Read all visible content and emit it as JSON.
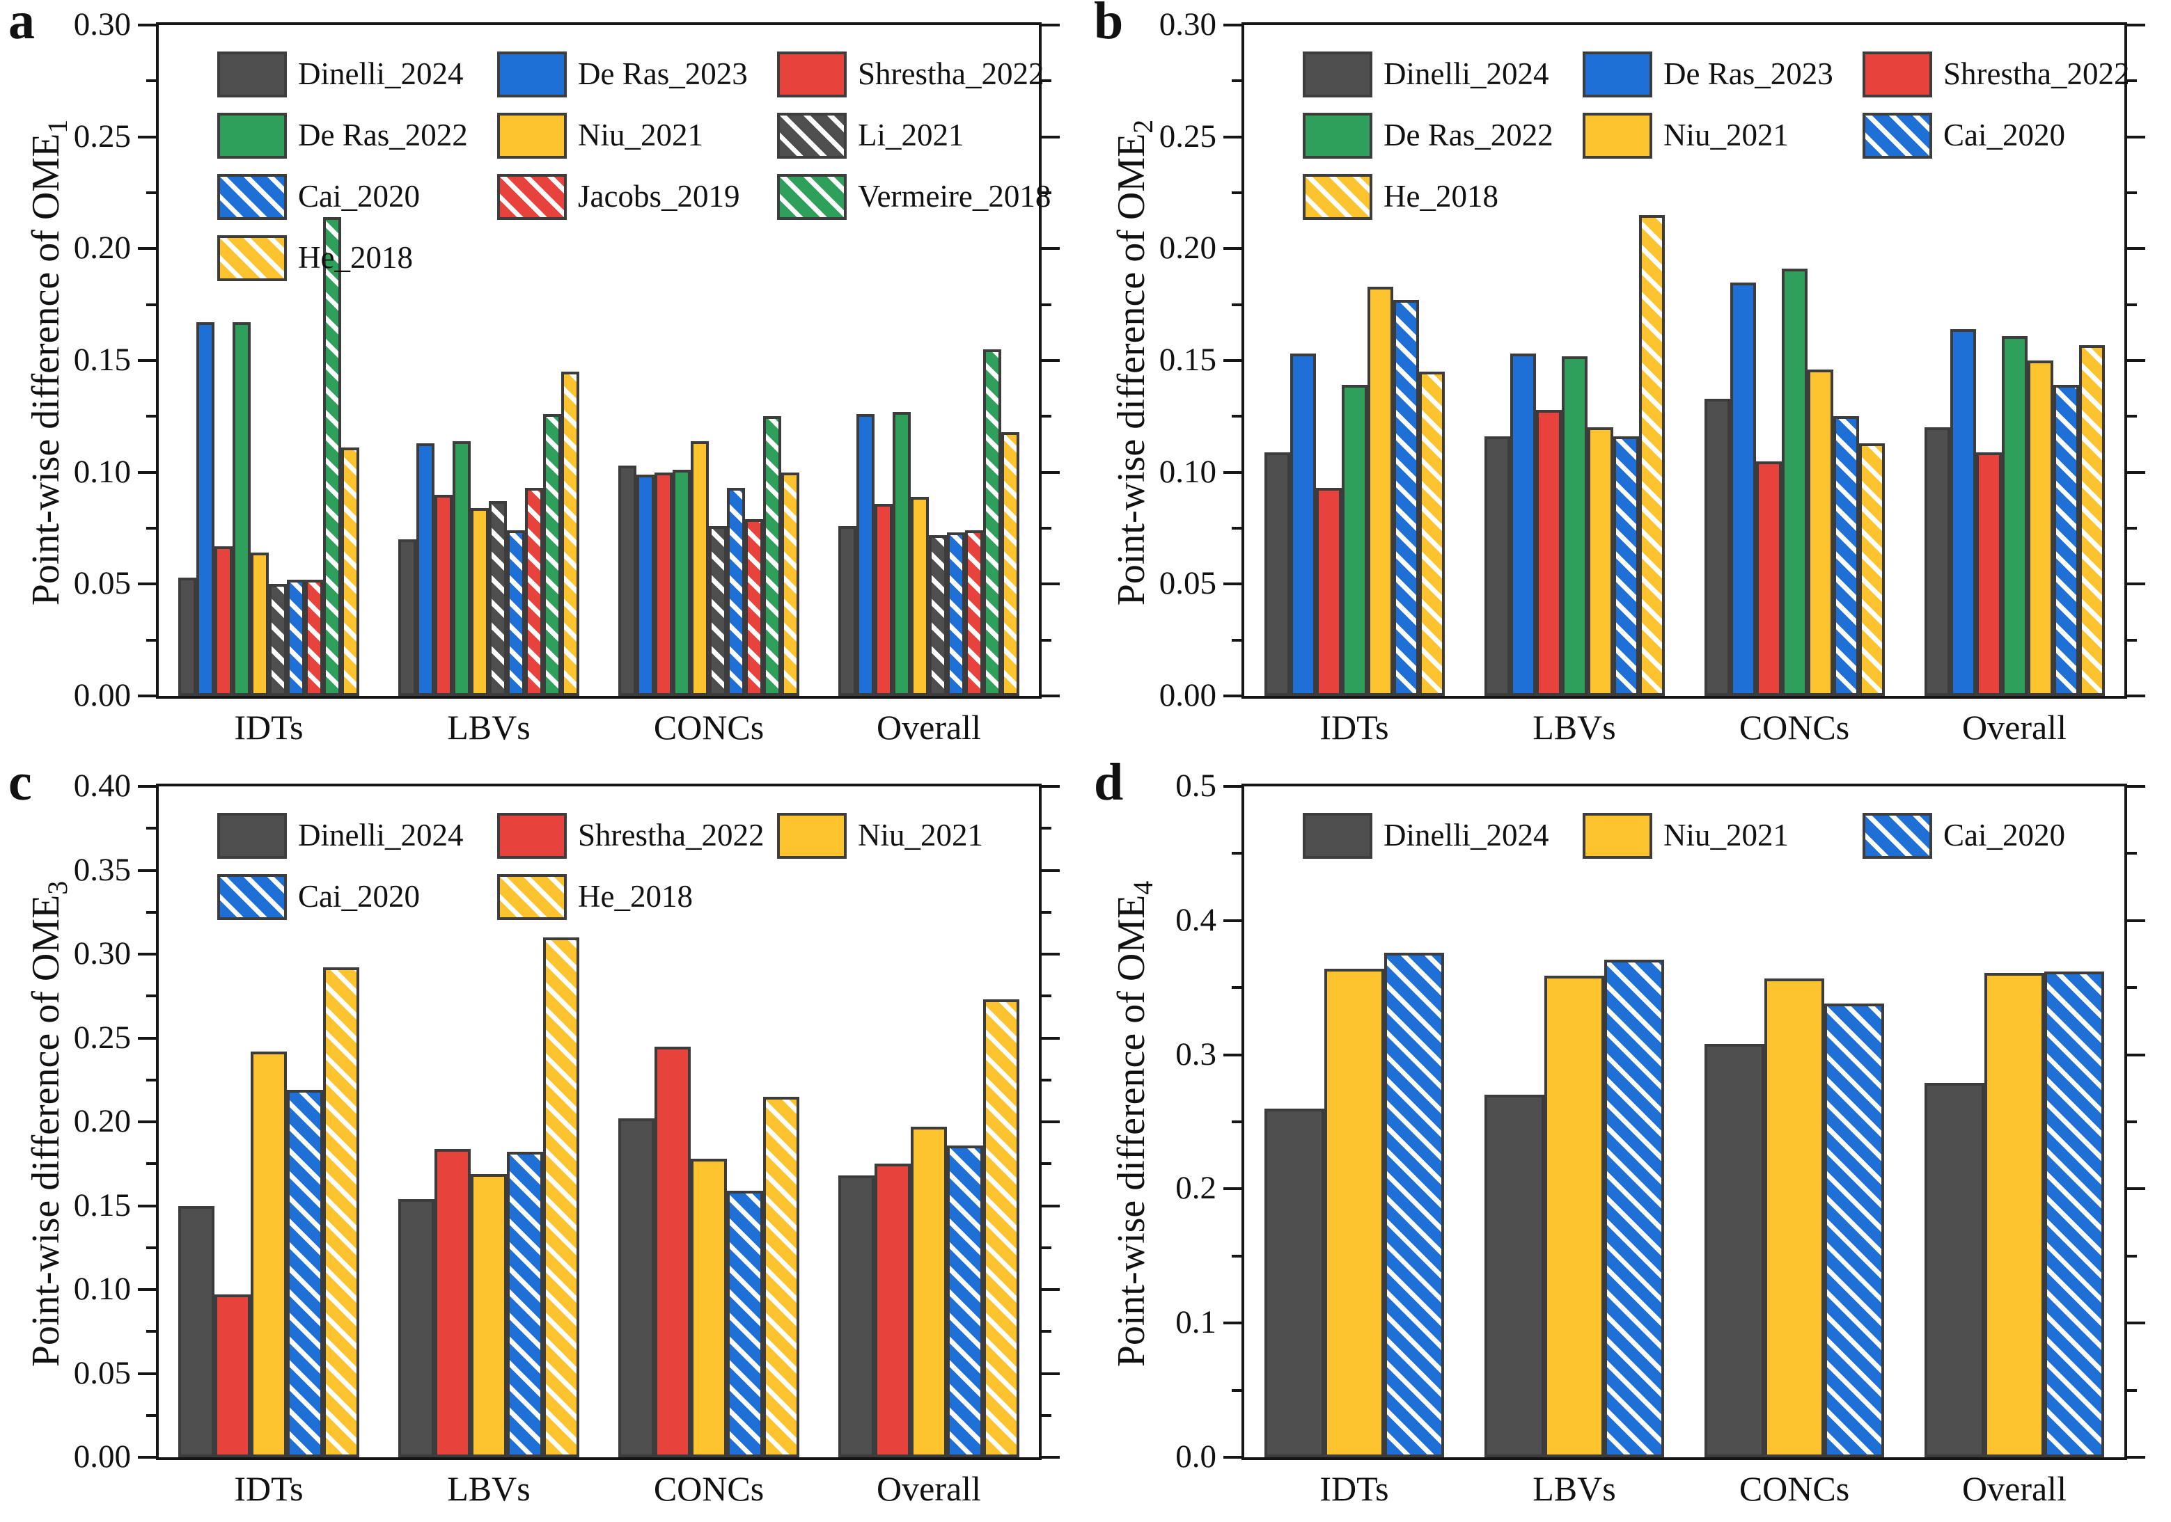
{
  "style": {
    "colors": {
      "gray": "#4e4e4e",
      "blue": "#1e70d6",
      "red": "#e8423c",
      "green": "#2fa05c",
      "yellow": "#fcc32f",
      "bar_edge": "#3c3c3c",
      "axis": "#161616",
      "hatch_stripe": "#ffffff"
    }
  },
  "chart_data": [
    {
      "type": "bar",
      "letter": "a",
      "ylabel": "Point-wise difference of OME",
      "ylabel_sub": "1",
      "ylim": [
        0,
        0.3
      ],
      "ytick_major": 0.05,
      "ytick_minor": 0.025,
      "ytick_decimals": 2,
      "grid": false,
      "legend_position": "upper-left-inside",
      "legend_cols": 3,
      "categories": [
        "IDTs",
        "LBVs",
        "CONCs",
        "Overall"
      ],
      "series": [
        {
          "name": "Dinelli_2024",
          "color": "gray",
          "hatch": false,
          "values": [
            0.053,
            0.07,
            0.103,
            0.076
          ]
        },
        {
          "name": "De Ras_2023",
          "color": "blue",
          "hatch": false,
          "values": [
            0.167,
            0.113,
            0.099,
            0.126
          ]
        },
        {
          "name": "Shrestha_2022",
          "color": "red",
          "hatch": false,
          "values": [
            0.067,
            0.09,
            0.1,
            0.086
          ]
        },
        {
          "name": "De Ras_2022",
          "color": "green",
          "hatch": false,
          "values": [
            0.167,
            0.114,
            0.101,
            0.127
          ]
        },
        {
          "name": "Niu_2021",
          "color": "yellow",
          "hatch": false,
          "values": [
            0.064,
            0.084,
            0.114,
            0.089
          ]
        },
        {
          "name": "Li_2021",
          "color": "gray",
          "hatch": true,
          "values": [
            0.05,
            0.087,
            0.076,
            0.072
          ]
        },
        {
          "name": "Cai_2020",
          "color": "blue",
          "hatch": true,
          "values": [
            0.052,
            0.074,
            0.093,
            0.073
          ]
        },
        {
          "name": "Jacobs_2019",
          "color": "red",
          "hatch": true,
          "values": [
            0.052,
            0.093,
            0.079,
            0.074
          ]
        },
        {
          "name": "Vermeire_2018",
          "color": "green",
          "hatch": true,
          "values": [
            0.214,
            0.126,
            0.125,
            0.155
          ]
        },
        {
          "name": "He_2018",
          "color": "yellow",
          "hatch": true,
          "values": [
            0.111,
            0.145,
            0.1,
            0.118
          ]
        }
      ]
    },
    {
      "type": "bar",
      "letter": "b",
      "ylabel": "Point-wise difference of OME",
      "ylabel_sub": "2",
      "ylim": [
        0,
        0.3
      ],
      "ytick_major": 0.05,
      "ytick_minor": 0.025,
      "ytick_decimals": 2,
      "grid": false,
      "legend_position": "upper-left-inside",
      "legend_cols": 3,
      "categories": [
        "IDTs",
        "LBVs",
        "CONCs",
        "Overall"
      ],
      "series": [
        {
          "name": "Dinelli_2024",
          "color": "gray",
          "hatch": false,
          "values": [
            0.109,
            0.116,
            0.133,
            0.12
          ]
        },
        {
          "name": "De Ras_2023",
          "color": "blue",
          "hatch": false,
          "values": [
            0.153,
            0.153,
            0.185,
            0.164
          ]
        },
        {
          "name": "Shrestha_2022",
          "color": "red",
          "hatch": false,
          "values": [
            0.093,
            0.128,
            0.105,
            0.109
          ]
        },
        {
          "name": "De Ras_2022",
          "color": "green",
          "hatch": false,
          "values": [
            0.139,
            0.152,
            0.191,
            0.161
          ]
        },
        {
          "name": "Niu_2021",
          "color": "yellow",
          "hatch": false,
          "values": [
            0.183,
            0.12,
            0.146,
            0.15
          ]
        },
        {
          "name": "Cai_2020",
          "color": "blue",
          "hatch": true,
          "values": [
            0.177,
            0.116,
            0.125,
            0.139
          ]
        },
        {
          "name": "He_2018",
          "color": "yellow",
          "hatch": true,
          "values": [
            0.145,
            0.215,
            0.113,
            0.157
          ]
        }
      ]
    },
    {
      "type": "bar",
      "letter": "c",
      "ylabel": "Point-wise difference of OME",
      "ylabel_sub": "3",
      "ylim": [
        0,
        0.4
      ],
      "ytick_major": 0.05,
      "ytick_minor": 0.025,
      "ytick_decimals": 2,
      "grid": false,
      "legend_position": "upper-left-inside",
      "legend_cols": 3,
      "categories": [
        "IDTs",
        "LBVs",
        "CONCs",
        "Overall"
      ],
      "series": [
        {
          "name": "Dinelli_2024",
          "color": "gray",
          "hatch": false,
          "values": [
            0.15,
            0.154,
            0.202,
            0.168
          ]
        },
        {
          "name": "Shrestha_2022",
          "color": "red",
          "hatch": false,
          "values": [
            0.097,
            0.184,
            0.245,
            0.175
          ]
        },
        {
          "name": "Niu_2021",
          "color": "yellow",
          "hatch": false,
          "values": [
            0.242,
            0.169,
            0.178,
            0.197
          ]
        },
        {
          "name": "Cai_2020",
          "color": "blue",
          "hatch": true,
          "values": [
            0.219,
            0.182,
            0.159,
            0.186
          ]
        },
        {
          "name": "He_2018",
          "color": "yellow",
          "hatch": true,
          "values": [
            0.292,
            0.31,
            0.215,
            0.273
          ]
        }
      ]
    },
    {
      "type": "bar",
      "letter": "d",
      "ylabel": "Point-wise difference of OME",
      "ylabel_sub": "4",
      "ylim": [
        0,
        0.5
      ],
      "ytick_major": 0.1,
      "ytick_minor": 0.05,
      "ytick_decimals": 1,
      "grid": false,
      "legend_position": "upper-left-inside",
      "legend_cols": 3,
      "categories": [
        "IDTs",
        "LBVs",
        "CONCs",
        "Overall"
      ],
      "series": [
        {
          "name": "Dinelli_2024",
          "color": "gray",
          "hatch": false,
          "values": [
            0.26,
            0.27,
            0.308,
            0.279
          ]
        },
        {
          "name": "Niu_2021",
          "color": "yellow",
          "hatch": false,
          "values": [
            0.364,
            0.359,
            0.357,
            0.361
          ]
        },
        {
          "name": "Cai_2020",
          "color": "blue",
          "hatch": true,
          "values": [
            0.376,
            0.371,
            0.338,
            0.362
          ]
        }
      ]
    }
  ]
}
